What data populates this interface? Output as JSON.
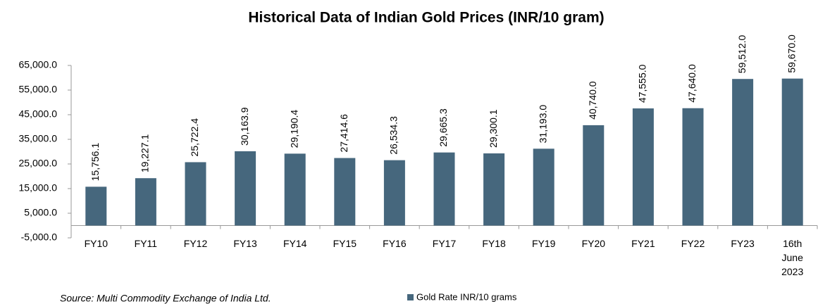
{
  "chart_data": {
    "type": "bar",
    "title": "Historical Data of Indian Gold Prices (INR/10 gram)",
    "categories": [
      "FY10",
      "FY11",
      "FY12",
      "FY13",
      "FY14",
      "FY15",
      "FY16",
      "FY17",
      "FY18",
      "FY19",
      "FY20",
      "FY21",
      "FY22",
      "FY23",
      "16th June 2023"
    ],
    "series": [
      {
        "name": "Gold Rate INR/10 grams",
        "color": "#46677d",
        "values": [
          15756.1,
          19227.1,
          25722.4,
          30163.9,
          29190.4,
          27414.6,
          26534.3,
          29665.3,
          29300.1,
          31193.0,
          40740.0,
          47555.0,
          47640.0,
          59512.0,
          59670.0
        ],
        "value_labels": [
          "15,756.1",
          "19,227.1",
          "25,722.4",
          "30,163.9",
          "29,190.4",
          "27,414.6",
          "26,534.3",
          "29,665.3",
          "29,300.1",
          "31,193.0",
          "40,740.0",
          "47,555.0",
          "47,640.0",
          "59,512.0",
          "59,670.0"
        ]
      }
    ],
    "ylim": [
      -5000,
      65000
    ],
    "yticks": [
      {
        "value": -5000,
        "label": "-5,000.0"
      },
      {
        "value": 5000,
        "label": "5,000.0"
      },
      {
        "value": 15000,
        "label": "15,000.0"
      },
      {
        "value": 25000,
        "label": "25,000.0"
      },
      {
        "value": 35000,
        "label": "35,000.0"
      },
      {
        "value": 45000,
        "label": "45,000.0"
      },
      {
        "value": 55000,
        "label": "55,000.0"
      },
      {
        "value": 65000,
        "label": "65,000.0"
      }
    ],
    "grid": false,
    "source": "Source: Multi Commodity Exchange of India Ltd."
  }
}
